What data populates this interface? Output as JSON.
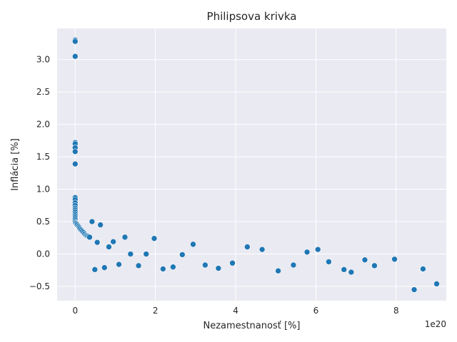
{
  "chart_data": {
    "type": "scatter",
    "title": "Philipsova krivka",
    "xlabel": "Nezamestnanosť [%]",
    "ylabel": "Inflácia [%]",
    "x_offset_label": "1e20",
    "xlim": [
      -0.45,
      9.25
    ],
    "ylim": [
      -0.72,
      3.48
    ],
    "x_ticks": [
      0,
      2,
      4,
      6,
      8
    ],
    "x_tick_labels": [
      "0",
      "2",
      "4",
      "6",
      "8"
    ],
    "y_ticks": [
      -0.5,
      0.0,
      0.5,
      1.0,
      1.5,
      2.0,
      2.5,
      3.0
    ],
    "y_tick_labels": [
      "−0.5",
      "0.0",
      "0.5",
      "1.0",
      "1.5",
      "2.0",
      "2.5",
      "3.0"
    ],
    "grid": true,
    "style": "seaborn-darkgrid",
    "marker_color": "#1f77b4",
    "marker_edge_color": "#ffffff",
    "points": [
      {
        "x": 0.0,
        "y": 3.3
      },
      {
        "x": 0.0,
        "y": 3.28
      },
      {
        "x": 0.0,
        "y": 3.05
      },
      {
        "x": 0.0,
        "y": 1.72
      },
      {
        "x": 0.0,
        "y": 1.7
      },
      {
        "x": 0.0,
        "y": 1.64
      },
      {
        "x": 0.0,
        "y": 1.58
      },
      {
        "x": 0.0,
        "y": 1.39
      },
      {
        "x": 0.0,
        "y": 0.87
      },
      {
        "x": 0.0,
        "y": 0.84
      },
      {
        "x": 0.0,
        "y": 0.79
      },
      {
        "x": 0.0,
        "y": 0.75
      },
      {
        "x": 0.0,
        "y": 0.71
      },
      {
        "x": 0.0,
        "y": 0.68
      },
      {
        "x": 0.0,
        "y": 0.65
      },
      {
        "x": 0.0,
        "y": 0.62
      },
      {
        "x": 0.0,
        "y": 0.59
      },
      {
        "x": 0.0,
        "y": 0.56
      },
      {
        "x": 0.0,
        "y": 0.53
      },
      {
        "x": 0.0,
        "y": 0.5
      },
      {
        "x": 0.01,
        "y": 0.48
      },
      {
        "x": 0.03,
        "y": 0.47
      },
      {
        "x": 0.05,
        "y": 0.45
      },
      {
        "x": 0.08,
        "y": 0.43
      },
      {
        "x": 0.1,
        "y": 0.41
      },
      {
        "x": 0.12,
        "y": 0.39
      },
      {
        "x": 0.15,
        "y": 0.37
      },
      {
        "x": 0.18,
        "y": 0.35
      },
      {
        "x": 0.21,
        "y": 0.33
      },
      {
        "x": 0.24,
        "y": 0.31
      },
      {
        "x": 0.27,
        "y": 0.29
      },
      {
        "x": 0.3,
        "y": 0.28
      },
      {
        "x": 0.33,
        "y": 0.27
      },
      {
        "x": 0.36,
        "y": 0.26
      },
      {
        "x": 0.42,
        "y": 0.5
      },
      {
        "x": 0.49,
        "y": -0.24
      },
      {
        "x": 0.55,
        "y": 0.18
      },
      {
        "x": 0.63,
        "y": 0.45
      },
      {
        "x": 0.73,
        "y": -0.21
      },
      {
        "x": 0.84,
        "y": 0.11
      },
      {
        "x": 0.95,
        "y": 0.19
      },
      {
        "x": 1.09,
        "y": -0.16
      },
      {
        "x": 1.24,
        "y": 0.26
      },
      {
        "x": 1.38,
        "y": 0.0
      },
      {
        "x": 1.58,
        "y": -0.18
      },
      {
        "x": 1.77,
        "y": 0.0
      },
      {
        "x": 1.97,
        "y": 0.24
      },
      {
        "x": 2.19,
        "y": -0.23
      },
      {
        "x": 2.44,
        "y": -0.2
      },
      {
        "x": 2.67,
        "y": -0.01
      },
      {
        "x": 2.94,
        "y": 0.15
      },
      {
        "x": 3.24,
        "y": -0.17
      },
      {
        "x": 3.57,
        "y": -0.22
      },
      {
        "x": 3.92,
        "y": -0.14
      },
      {
        "x": 4.29,
        "y": 0.11
      },
      {
        "x": 4.66,
        "y": 0.07
      },
      {
        "x": 5.06,
        "y": -0.26
      },
      {
        "x": 5.44,
        "y": -0.17
      },
      {
        "x": 5.78,
        "y": 0.03
      },
      {
        "x": 6.05,
        "y": 0.07
      },
      {
        "x": 6.32,
        "y": -0.12
      },
      {
        "x": 6.7,
        "y": -0.24
      },
      {
        "x": 6.88,
        "y": -0.28
      },
      {
        "x": 7.22,
        "y": -0.09
      },
      {
        "x": 7.46,
        "y": -0.18
      },
      {
        "x": 7.96,
        "y": -0.08
      },
      {
        "x": 8.45,
        "y": -0.55
      },
      {
        "x": 8.67,
        "y": -0.23
      },
      {
        "x": 9.01,
        "y": -0.46
      }
    ]
  }
}
